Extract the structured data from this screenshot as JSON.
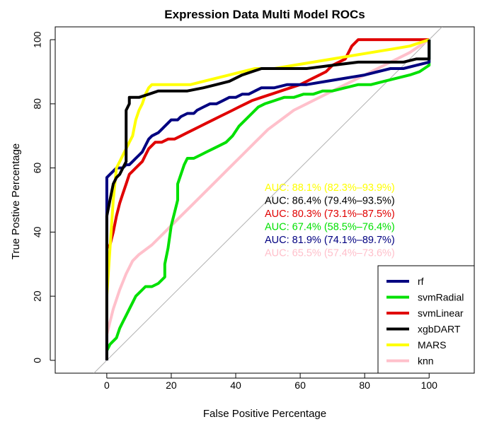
{
  "chart_data": {
    "type": "line",
    "title": "Expression Data Multi Model ROCs",
    "xlabel": "False Positive Percentage",
    "ylabel": "True Postive Percentage",
    "xlim": [
      -16,
      114
    ],
    "ylim": [
      -4,
      104
    ],
    "x_ticks": [
      0,
      20,
      40,
      60,
      80,
      100
    ],
    "y_ticks": [
      0,
      20,
      40,
      60,
      80,
      100
    ],
    "x_reversed_specificity_axis": true,
    "diagonal": {
      "from": [
        -4,
        -4
      ],
      "to": [
        104,
        104
      ],
      "color": "#b0b0b0"
    },
    "legend_position": "bottom-right",
    "series": [
      {
        "name": "rf",
        "color": "#000080",
        "points": [
          [
            0,
            0
          ],
          [
            0,
            45
          ],
          [
            0,
            52
          ],
          [
            0,
            57
          ],
          [
            1,
            58
          ],
          [
            2,
            59
          ],
          [
            3,
            60
          ],
          [
            5,
            60
          ],
          [
            6,
            61
          ],
          [
            7,
            61
          ],
          [
            8,
            62
          ],
          [
            9,
            63
          ],
          [
            10,
            64
          ],
          [
            11,
            65
          ],
          [
            12,
            67
          ],
          [
            13,
            69
          ],
          [
            14,
            70
          ],
          [
            16,
            71
          ],
          [
            17,
            72
          ],
          [
            18,
            73
          ],
          [
            19,
            74
          ],
          [
            20,
            75
          ],
          [
            22,
            75
          ],
          [
            23,
            76
          ],
          [
            25,
            77
          ],
          [
            27,
            77
          ],
          [
            28,
            78
          ],
          [
            30,
            79
          ],
          [
            32,
            80
          ],
          [
            34,
            80
          ],
          [
            36,
            81
          ],
          [
            38,
            82
          ],
          [
            40,
            82
          ],
          [
            42,
            83
          ],
          [
            44,
            83
          ],
          [
            46,
            84
          ],
          [
            48,
            85
          ],
          [
            52,
            85
          ],
          [
            56,
            86
          ],
          [
            62,
            86
          ],
          [
            68,
            87
          ],
          [
            74,
            88
          ],
          [
            80,
            89
          ],
          [
            84,
            90
          ],
          [
            88,
            91
          ],
          [
            92,
            91
          ],
          [
            96,
            92
          ],
          [
            100,
            93
          ],
          [
            100,
            100
          ]
        ]
      },
      {
        "name": "svmRadial",
        "color": "#00e000",
        "points": [
          [
            0,
            3
          ],
          [
            1,
            5
          ],
          [
            2,
            6
          ],
          [
            3,
            7
          ],
          [
            4,
            10
          ],
          [
            5,
            12
          ],
          [
            6,
            14
          ],
          [
            7,
            16
          ],
          [
            8,
            18
          ],
          [
            9,
            20
          ],
          [
            10,
            21
          ],
          [
            11,
            22
          ],
          [
            12,
            23
          ],
          [
            14,
            23
          ],
          [
            16,
            24
          ],
          [
            18,
            26
          ],
          [
            18,
            30
          ],
          [
            19,
            35
          ],
          [
            20,
            42
          ],
          [
            21,
            46
          ],
          [
            22,
            50
          ],
          [
            22,
            55
          ],
          [
            23,
            58
          ],
          [
            24,
            61
          ],
          [
            25,
            63
          ],
          [
            27,
            63
          ],
          [
            29,
            64
          ],
          [
            31,
            65
          ],
          [
            33,
            66
          ],
          [
            35,
            67
          ],
          [
            37,
            68
          ],
          [
            39,
            70
          ],
          [
            41,
            73
          ],
          [
            43,
            75
          ],
          [
            45,
            77
          ],
          [
            47,
            79
          ],
          [
            49,
            80
          ],
          [
            52,
            81
          ],
          [
            55,
            82
          ],
          [
            58,
            82
          ],
          [
            61,
            83
          ],
          [
            64,
            83
          ],
          [
            67,
            84
          ],
          [
            70,
            84
          ],
          [
            74,
            85
          ],
          [
            78,
            86
          ],
          [
            82,
            86
          ],
          [
            86,
            87
          ],
          [
            90,
            88
          ],
          [
            94,
            89
          ],
          [
            97,
            90
          ],
          [
            100,
            92
          ],
          [
            100,
            100
          ]
        ]
      },
      {
        "name": "svmLinear",
        "color": "#e00000",
        "points": [
          [
            0,
            35
          ],
          [
            1,
            36
          ],
          [
            2,
            40
          ],
          [
            3,
            45
          ],
          [
            4,
            49
          ],
          [
            5,
            52
          ],
          [
            6,
            55
          ],
          [
            7,
            58
          ],
          [
            8,
            59
          ],
          [
            9,
            60
          ],
          [
            10,
            61
          ],
          [
            11,
            62
          ],
          [
            12,
            64
          ],
          [
            13,
            66
          ],
          [
            14,
            67
          ],
          [
            15,
            68
          ],
          [
            17,
            68
          ],
          [
            19,
            69
          ],
          [
            21,
            69
          ],
          [
            23,
            70
          ],
          [
            25,
            71
          ],
          [
            27,
            72
          ],
          [
            29,
            73
          ],
          [
            31,
            74
          ],
          [
            33,
            75
          ],
          [
            35,
            76
          ],
          [
            37,
            77
          ],
          [
            39,
            78
          ],
          [
            41,
            79
          ],
          [
            43,
            80
          ],
          [
            45,
            81
          ],
          [
            48,
            82
          ],
          [
            51,
            83
          ],
          [
            54,
            84
          ],
          [
            57,
            85
          ],
          [
            60,
            86
          ],
          [
            62,
            87
          ],
          [
            64,
            88
          ],
          [
            66,
            89
          ],
          [
            68,
            90
          ],
          [
            70,
            92
          ],
          [
            72,
            93
          ],
          [
            74,
            94
          ],
          [
            75,
            96
          ],
          [
            76,
            98
          ],
          [
            77,
            99
          ],
          [
            78,
            100
          ],
          [
            100,
            100
          ]
        ]
      },
      {
        "name": "xgbDART",
        "color": "#000000",
        "points": [
          [
            0,
            0
          ],
          [
            0,
            15
          ],
          [
            0,
            30
          ],
          [
            0,
            45
          ],
          [
            1,
            50
          ],
          [
            2,
            55
          ],
          [
            3,
            57
          ],
          [
            4,
            58
          ],
          [
            5,
            60
          ],
          [
            6,
            62
          ],
          [
            6,
            70
          ],
          [
            6,
            78
          ],
          [
            7,
            80
          ],
          [
            7,
            82
          ],
          [
            10,
            82
          ],
          [
            13,
            83
          ],
          [
            16,
            84
          ],
          [
            18,
            84
          ],
          [
            20,
            84
          ],
          [
            25,
            84
          ],
          [
            30,
            85
          ],
          [
            34,
            86
          ],
          [
            38,
            87
          ],
          [
            40,
            88
          ],
          [
            42,
            89
          ],
          [
            45,
            90
          ],
          [
            48,
            91
          ],
          [
            55,
            91
          ],
          [
            62,
            91
          ],
          [
            70,
            92
          ],
          [
            78,
            93
          ],
          [
            86,
            93
          ],
          [
            92,
            93
          ],
          [
            96,
            94
          ],
          [
            100,
            94
          ],
          [
            100,
            100
          ]
        ]
      },
      {
        "name": "MARS",
        "color": "#ffff00",
        "points": [
          [
            0,
            8
          ],
          [
            0,
            20
          ],
          [
            1,
            35
          ],
          [
            2,
            50
          ],
          [
            3,
            60
          ],
          [
            4,
            62
          ],
          [
            5,
            64
          ],
          [
            6,
            66
          ],
          [
            7,
            68
          ],
          [
            8,
            70
          ],
          [
            9,
            75
          ],
          [
            10,
            78
          ],
          [
            11,
            80
          ],
          [
            12,
            83
          ],
          [
            13,
            85
          ],
          [
            14,
            86
          ],
          [
            15,
            86
          ],
          [
            18,
            86
          ],
          [
            22,
            86
          ],
          [
            26,
            86
          ],
          [
            30,
            87
          ],
          [
            34,
            88
          ],
          [
            38,
            89
          ],
          [
            42,
            90
          ],
          [
            46,
            91
          ],
          [
            52,
            91
          ],
          [
            58,
            92
          ],
          [
            64,
            93
          ],
          [
            70,
            94
          ],
          [
            76,
            95
          ],
          [
            82,
            96
          ],
          [
            88,
            97
          ],
          [
            94,
            98
          ],
          [
            100,
            100
          ]
        ]
      },
      {
        "name": "knn",
        "color": "#ffc0cb",
        "points": [
          [
            0,
            0
          ],
          [
            0,
            8
          ],
          [
            1,
            12
          ],
          [
            2,
            16
          ],
          [
            4,
            22
          ],
          [
            6,
            27
          ],
          [
            8,
            31
          ],
          [
            10,
            33
          ],
          [
            14,
            36
          ],
          [
            18,
            40
          ],
          [
            22,
            44
          ],
          [
            26,
            48
          ],
          [
            30,
            52
          ],
          [
            34,
            56
          ],
          [
            38,
            60
          ],
          [
            42,
            64
          ],
          [
            46,
            68
          ],
          [
            50,
            72
          ],
          [
            54,
            75
          ],
          [
            58,
            78
          ],
          [
            62,
            80
          ],
          [
            66,
            82
          ],
          [
            70,
            84
          ],
          [
            74,
            86
          ],
          [
            78,
            88
          ],
          [
            82,
            90
          ],
          [
            86,
            92
          ],
          [
            90,
            94
          ],
          [
            94,
            96
          ],
          [
            97,
            98
          ],
          [
            100,
            100
          ]
        ]
      }
    ],
    "auc_annotations": [
      {
        "text": "AUC: 88.1% (82.3%–93.9%)",
        "color": "#ffff00"
      },
      {
        "text": "AUC: 86.4% (79.4%–93.5%)",
        "color": "#000000"
      },
      {
        "text": "AUC: 80.3% (73.1%–87.5%)",
        "color": "#e00000"
      },
      {
        "text": "AUC: 67.4% (58.5%–76.4%)",
        "color": "#00e000"
      },
      {
        "text": "AUC: 81.9% (74.1%–89.7%)",
        "color": "#000080"
      },
      {
        "text": "AUC: 65.5% (57.4%–73.6%)",
        "color": "#ffc0cb"
      }
    ],
    "legend": [
      {
        "label": "rf",
        "color": "#000080"
      },
      {
        "label": "svmRadial",
        "color": "#00e000"
      },
      {
        "label": "svmLinear",
        "color": "#e00000"
      },
      {
        "label": "xgbDART",
        "color": "#000000"
      },
      {
        "label": "MARS",
        "color": "#ffff00"
      },
      {
        "label": "knn",
        "color": "#ffc0cb"
      }
    ]
  }
}
